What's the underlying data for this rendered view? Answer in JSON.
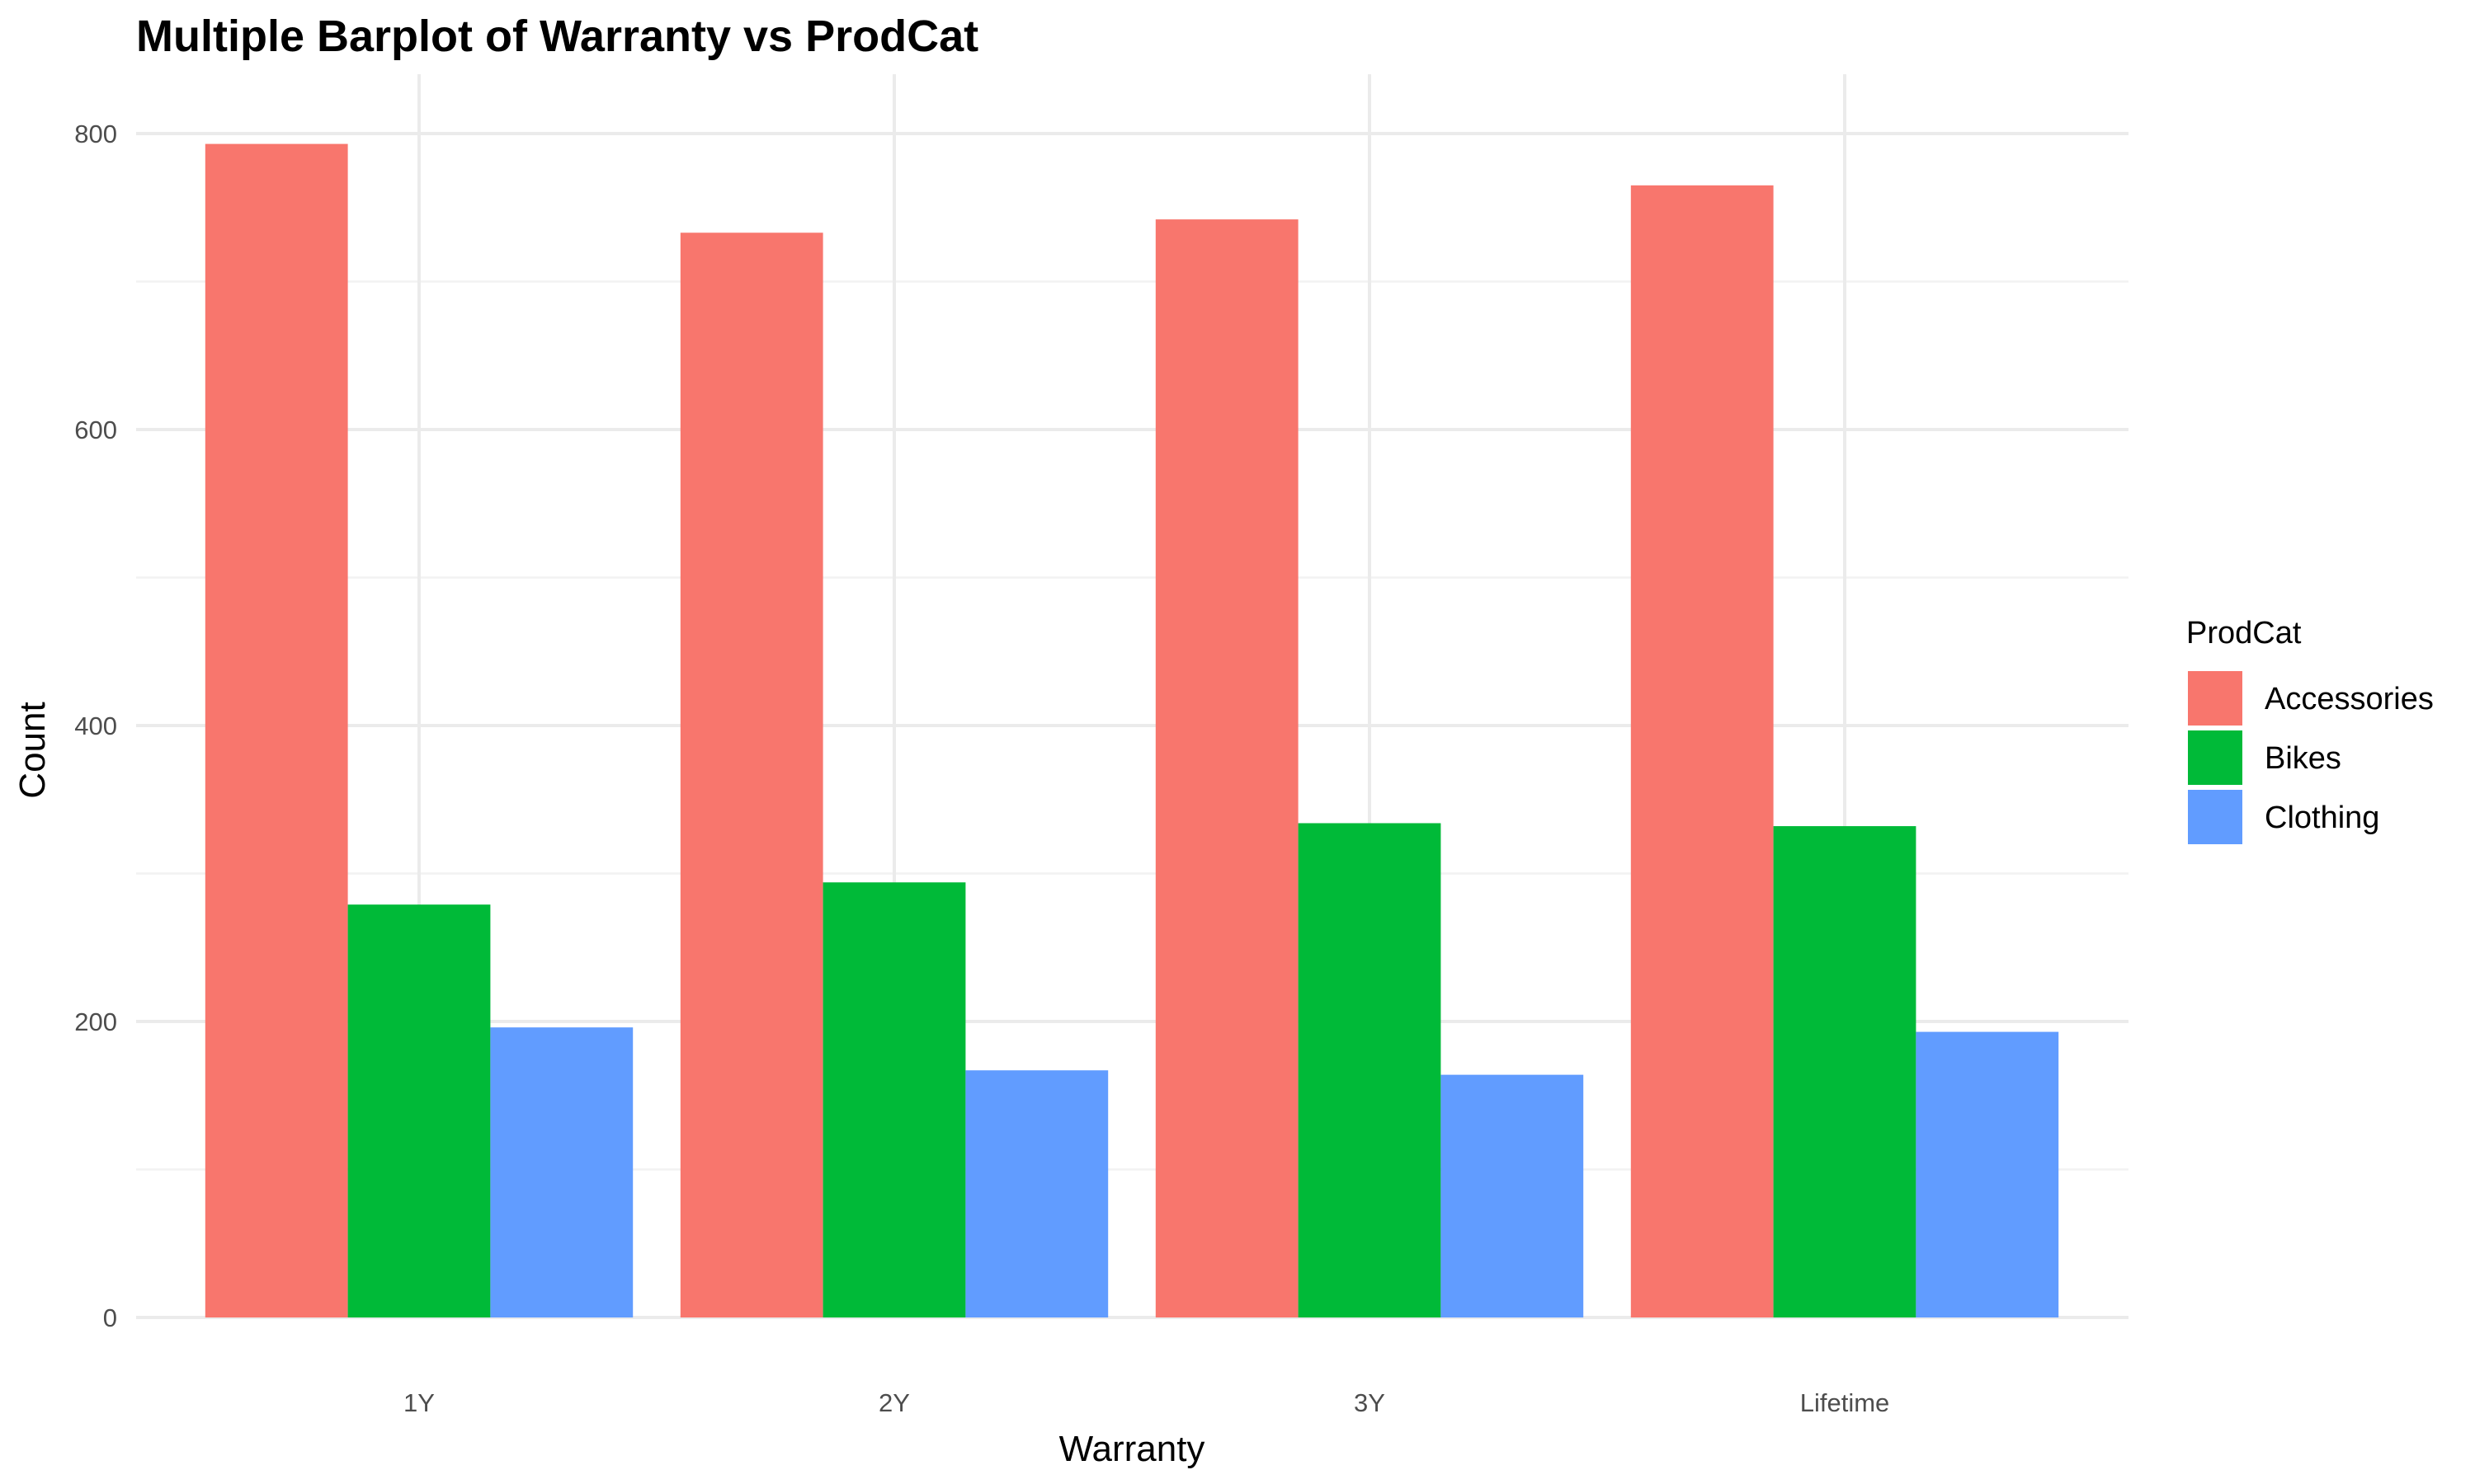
{
  "chart_data": {
    "type": "bar",
    "title": "Multiple Barplot of Warranty vs ProdCat",
    "xlabel": "Warranty",
    "ylabel": "Count",
    "categories": [
      "1Y",
      "2Y",
      "3Y",
      "Lifetime"
    ],
    "series": [
      {
        "name": "Accessories",
        "color": "#F8766D",
        "values": [
          793,
          733,
          742,
          765
        ]
      },
      {
        "name": "Bikes",
        "color": "#00BA38",
        "values": [
          279,
          294,
          334,
          332
        ]
      },
      {
        "name": "Clothing",
        "color": "#619CFF",
        "values": [
          196,
          167,
          164,
          193
        ]
      }
    ],
    "ylim": [
      0,
      800
    ],
    "yticks": [
      0,
      200,
      400,
      600,
      800
    ],
    "legend": {
      "title": "ProdCat",
      "position": "right"
    },
    "grid": true,
    "bar_position": "dodge"
  }
}
